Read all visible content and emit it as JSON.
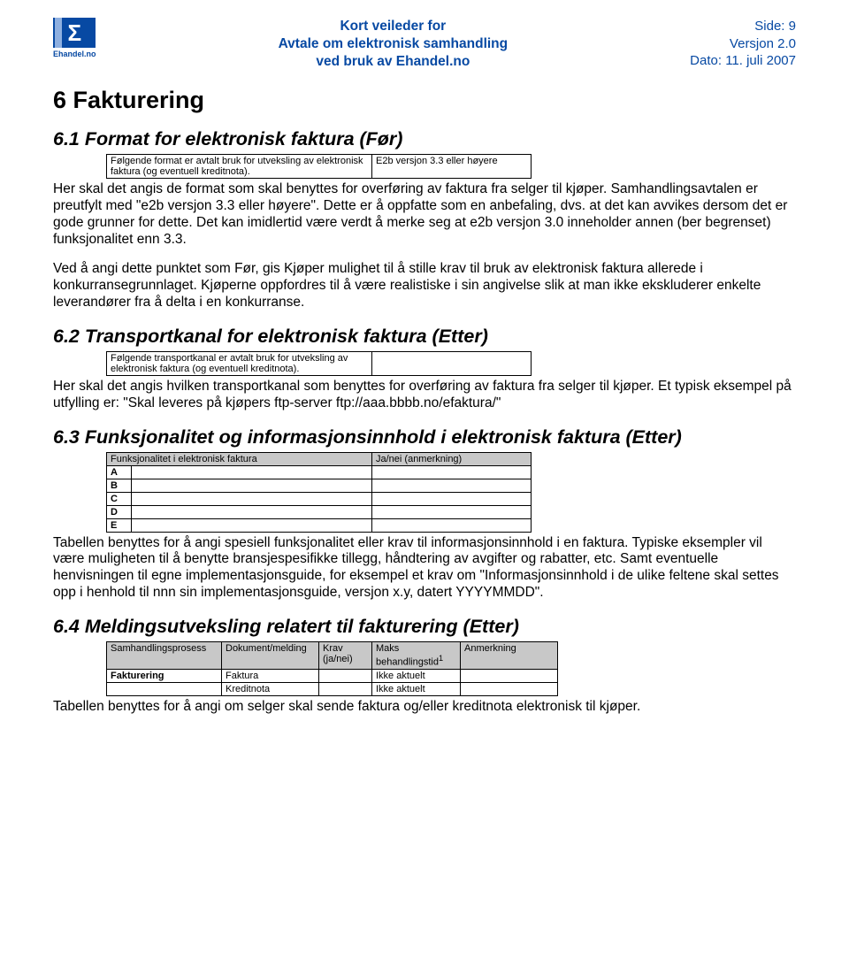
{
  "header": {
    "logo_letter": "Σ",
    "logo_brand": "Ehandel.no",
    "center_line1": "Kort veileder for",
    "center_line2": "Avtale om elektronisk samhandling",
    "center_line3": "ved bruk av Ehandel.no",
    "right_line1": "Side: 9",
    "right_line2": "Versjon 2.0",
    "right_line3": "Dato: 11. juli 2007"
  },
  "s6": {
    "title": "6  Fakturering",
    "s61": {
      "heading": "6.1  Format for elektronisk faktura (Før)",
      "tbl": {
        "left": "Følgende format er avtalt bruk for utveksling av elektronisk faktura (og eventuell kreditnota).",
        "right": "E2b versjon 3.3 eller høyere"
      },
      "p1": "Her skal det angis de format som skal benyttes for overføring av faktura fra selger til kjøper. Samhandlingsavtalen er preutfylt med \"e2b versjon 3.3 eller høyere\". Dette er å oppfatte som en anbefaling, dvs. at det kan avvikes dersom det er gode grunner for dette. Det kan imidlertid være verdt å merke seg at e2b versjon 3.0 inneholder annen (ber begrenset) funksjonalitet enn 3.3.",
      "p2": "Ved å angi dette punktet som Før, gis Kjøper mulighet til å stille krav til bruk av elektronisk faktura allerede i konkurransegrunnlaget. Kjøperne oppfordres til å være realistiske i sin angivelse slik at man ikke ekskluderer enkelte leverandører fra å delta i en konkurranse."
    },
    "s62": {
      "heading": "6.2  Transportkanal for elektronisk faktura (Etter)",
      "tbl": {
        "left": "Følgende transportkanal er avtalt bruk for utveksling av elektronisk faktura (og eventuell kreditnota).",
        "right": ""
      },
      "p1": "Her skal det angis hvilken transportkanal som benyttes for overføring av faktura fra selger til kjøper. Et typisk eksempel på utfylling er: \"Skal leveres på kjøpers ftp-server ftp://aaa.bbbb.no/efaktura/\""
    },
    "s63": {
      "heading": "6.3  Funksjonalitet og informasjonsinnhold i elektronisk faktura (Etter)",
      "tbl": {
        "hdr_left": "Funksjonalitet i elektronisk faktura",
        "hdr_right": "Ja/nei (anmerkning)",
        "rows": [
          "A",
          "B",
          "C",
          "D",
          "E"
        ]
      },
      "p1": "Tabellen benyttes for å angi spesiell funksjonalitet eller krav til informasjonsinnhold i en faktura. Typiske eksempler vil være muligheten til å benytte bransjespesifikke tillegg, håndtering av avgifter og rabatter, etc. Samt eventuelle henvisningen til egne implementasjonsguide, for eksempel et krav om \"Informasjonsinnhold i de ulike feltene skal settes opp i henhold til nnn sin implementasjonsguide, versjon x.y, datert YYYYMMDD\"."
    },
    "s64": {
      "heading": "6.4  Meldingsutveksling relatert til fakturering (Etter)",
      "tbl": {
        "h1": "Samhandlingsprosess",
        "h2": "Dokument/melding",
        "h3": "Krav (ja/nei)",
        "h4": "Maks behandlingstid",
        "h4sup": "1",
        "h5": "Anmerkning",
        "r1c1": "Fakturering",
        "r1c2": "Faktura",
        "r1c4": "Ikke aktuelt",
        "r2c2": "Kreditnota",
        "r2c4": "Ikke aktuelt"
      },
      "p1": "Tabellen benyttes for å angi om selger skal sende faktura og/eller kreditnota elektronisk til kjøper."
    }
  },
  "colors": {
    "brand_blue": "#0749a3",
    "table_header_gray": "#c8c8c8",
    "text": "#000000",
    "background": "#ffffff"
  }
}
